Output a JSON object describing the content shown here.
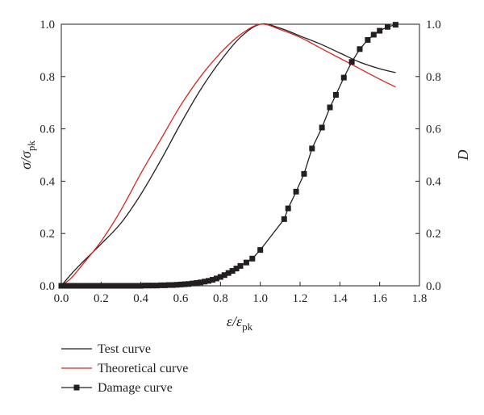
{
  "chart_data": {
    "type": "line",
    "x_axis": {
      "label_main": "ε/ε",
      "label_sub": "pk",
      "range": [
        0,
        1.8
      ],
      "ticks": [
        "0.0",
        "0.2",
        "0.4",
        "0.6",
        "0.8",
        "1.0",
        "1.2",
        "1.4",
        "1.6",
        "1.8"
      ]
    },
    "y_axis_left": {
      "label_main": "σ/σ",
      "label_sub": "pk",
      "range": [
        0,
        1.0
      ],
      "ticks": [
        "0.0",
        "0.2",
        "0.4",
        "0.6",
        "0.8",
        "1.0"
      ]
    },
    "y_axis_right": {
      "label": "D",
      "range": [
        0,
        1.0
      ],
      "ticks": [
        "0.0",
        "0.2",
        "0.4",
        "0.6",
        "0.8",
        "1.0"
      ]
    },
    "legend_placement": "bottom-left",
    "series": [
      {
        "name": "Test curve",
        "axis": "left",
        "color": "#231f20",
        "marker": "none",
        "x": [
          0,
          0.05,
          0.1,
          0.2,
          0.3,
          0.4,
          0.5,
          0.6,
          0.7,
          0.8,
          0.9,
          1.0,
          1.1,
          1.2,
          1.3,
          1.4,
          1.5,
          1.6,
          1.68
        ],
        "y": [
          0,
          0.045,
          0.085,
          0.16,
          0.24,
          0.35,
          0.48,
          0.62,
          0.75,
          0.86,
          0.95,
          1.0,
          0.985,
          0.955,
          0.925,
          0.89,
          0.855,
          0.83,
          0.815
        ]
      },
      {
        "name": "Theoretical curve",
        "axis": "left",
        "color": "#d7261e",
        "marker": "none",
        "x": [
          0,
          0.05,
          0.1,
          0.2,
          0.3,
          0.4,
          0.5,
          0.6,
          0.7,
          0.8,
          0.9,
          1.0,
          1.1,
          1.2,
          1.3,
          1.4,
          1.5,
          1.6,
          1.68
        ],
        "y": [
          0,
          0.03,
          0.075,
          0.17,
          0.29,
          0.43,
          0.56,
          0.69,
          0.8,
          0.89,
          0.96,
          1.0,
          0.98,
          0.95,
          0.91,
          0.87,
          0.83,
          0.79,
          0.76
        ]
      },
      {
        "name": "Damage curve",
        "axis": "right",
        "color": "#231f20",
        "marker": "square",
        "x": [
          0.0,
          0.02,
          0.04,
          0.06,
          0.08,
          0.1,
          0.12,
          0.14,
          0.16,
          0.18,
          0.2,
          0.22,
          0.24,
          0.26,
          0.28,
          0.3,
          0.32,
          0.34,
          0.36,
          0.38,
          0.4,
          0.42,
          0.44,
          0.46,
          0.48,
          0.5,
          0.52,
          0.54,
          0.56,
          0.58,
          0.6,
          0.62,
          0.64,
          0.66,
          0.68,
          0.7,
          0.72,
          0.74,
          0.76,
          0.78,
          0.8,
          0.82,
          0.84,
          0.86,
          0.88,
          0.9,
          0.93,
          0.96,
          1.0,
          1.12,
          1.14,
          1.18,
          1.22,
          1.26,
          1.31,
          1.35,
          1.38,
          1.42,
          1.46,
          1.5,
          1.54,
          1.57,
          1.6,
          1.64,
          1.68
        ],
        "y": [
          0.0,
          0.0,
          0.0,
          0.0,
          0.0,
          0.0,
          0.0,
          0.0,
          0.0,
          0.0,
          0.0,
          0.0,
          0.0,
          0.0,
          0.0,
          0.0,
          0.0,
          0.0,
          0.0,
          0.0,
          0.0,
          0.001,
          0.001,
          0.001,
          0.001,
          0.002,
          0.002,
          0.003,
          0.003,
          0.004,
          0.005,
          0.006,
          0.007,
          0.009,
          0.011,
          0.013,
          0.016,
          0.019,
          0.023,
          0.028,
          0.034,
          0.041,
          0.049,
          0.057,
          0.066,
          0.076,
          0.089,
          0.104,
          0.137,
          0.255,
          0.296,
          0.36,
          0.428,
          0.525,
          0.605,
          0.682,
          0.73,
          0.796,
          0.856,
          0.905,
          0.94,
          0.96,
          0.975,
          0.99,
          0.998
        ]
      }
    ]
  }
}
